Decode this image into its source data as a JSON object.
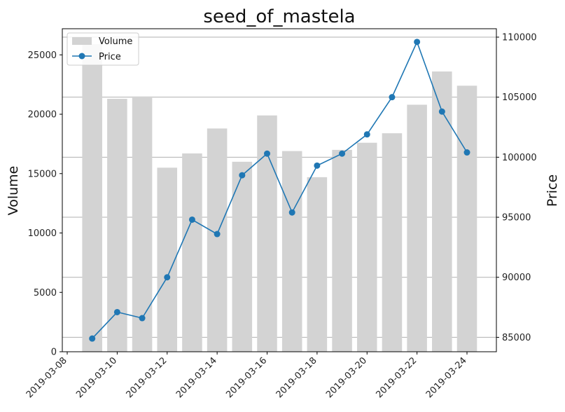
{
  "chart_data": {
    "type": "bar+line",
    "title": "seed_of_mastela",
    "xlabel": "",
    "ylabel_left": "Volume",
    "ylabel_right": "Price",
    "x": [
      "2019-03-09",
      "2019-03-10",
      "2019-03-11",
      "2019-03-12",
      "2019-03-13",
      "2019-03-14",
      "2019-03-15",
      "2019-03-16",
      "2019-03-17",
      "2019-03-18",
      "2019-03-19",
      "2019-03-20",
      "2019-03-21",
      "2019-03-22",
      "2019-03-23",
      "2019-03-24"
    ],
    "x_tick_labels": [
      "2019-03-08",
      "2019-03-10",
      "2019-03-12",
      "2019-03-14",
      "2019-03-16",
      "2019-03-18",
      "2019-03-20",
      "2019-03-22",
      "2019-03-24"
    ],
    "series": [
      {
        "name": "Volume",
        "kind": "bar",
        "axis": "left",
        "color": "#d3d3d3",
        "values": [
          25900,
          21300,
          21500,
          15500,
          16700,
          18800,
          16000,
          19900,
          16900,
          14700,
          17000,
          17600,
          18400,
          20800,
          23600,
          22400
        ]
      },
      {
        "name": "Price",
        "kind": "line",
        "axis": "right",
        "color": "#1f77b4",
        "values": [
          84900,
          87100,
          86600,
          90000,
          94800,
          93600,
          98500,
          100300,
          95400,
          99300,
          100300,
          101900,
          105000,
          109600,
          103800,
          100400
        ]
      }
    ],
    "ylim_left": [
      0,
      27200
    ],
    "ylim_right": [
      83800,
      110700
    ],
    "yticks_left": [
      0,
      5000,
      10000,
      15000,
      20000,
      25000
    ],
    "yticks_right": [
      85000,
      90000,
      95000,
      100000,
      105000,
      110000
    ],
    "grid": "horizontal (right axis)",
    "legend_position": "top-left"
  }
}
